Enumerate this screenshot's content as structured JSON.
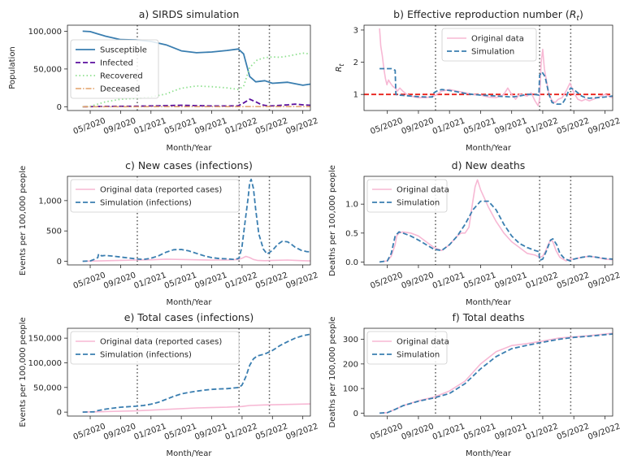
{
  "xlabel": "Month/Year",
  "x_tick_labels": [
    "05/2020",
    "09/2020",
    "01/2021",
    "05/2021",
    "09/2021",
    "01/2022",
    "05/2022",
    "09/2022"
  ],
  "x_tick_months": [
    4,
    8,
    12,
    16,
    20,
    24,
    28,
    32
  ],
  "x_range_months": [
    1,
    33
  ],
  "vertical_markers_months": [
    10.2,
    23.6,
    27.6
  ],
  "colors": {
    "susceptible": "#3a7eb0",
    "infected": "#5a0f9e",
    "recovered": "#8fe08f",
    "deceased": "#e3a068",
    "original": "#f7b8d4",
    "simulation": "#3a7eb0",
    "reference_line": "#e8201a",
    "marker": "#555555"
  },
  "chart_data": [
    {
      "type": "line",
      "title": "a) SIRDS simulation",
      "ylabel": "Population",
      "ylim": [
        -5000,
        108000
      ],
      "y_ticks": [
        0,
        50000,
        100000
      ],
      "y_tick_labels": [
        "0",
        "50,000",
        "100,000"
      ],
      "legend": "top-left",
      "series": [
        {
          "name": "Susceptible",
          "key": "susceptible",
          "style": "solid",
          "x": [
            3,
            4,
            5,
            6,
            8,
            10,
            12,
            14,
            16,
            18,
            20,
            22,
            23.5,
            24.2,
            25,
            25.8,
            27,
            28,
            30,
            32,
            33
          ],
          "y": [
            100000,
            99500,
            96500,
            93500,
            89000,
            88500,
            86500,
            82000,
            74000,
            71500,
            72500,
            74500,
            76500,
            70000,
            40000,
            33000,
            34500,
            31000,
            32500,
            28500,
            30000
          ]
        },
        {
          "name": "Infected",
          "key": "infected",
          "style": "dashed",
          "x": [
            3,
            6,
            10,
            14,
            16,
            18,
            20,
            22,
            23.5,
            24.2,
            25,
            25.8,
            26.6,
            27.5,
            28.5,
            30,
            31,
            32,
            33
          ],
          "y": [
            0,
            500,
            700,
            1500,
            2000,
            1500,
            1000,
            1000,
            1200,
            5000,
            10000,
            6500,
            2500,
            1000,
            1500,
            2500,
            3500,
            2500,
            2000
          ]
        },
        {
          "name": "Recovered",
          "key": "recovered",
          "style": "dotted",
          "x": [
            3,
            4,
            5,
            6,
            8,
            10,
            12,
            14,
            15,
            16,
            17,
            18,
            20,
            22,
            23.5,
            24.2,
            25,
            26,
            27,
            28,
            29,
            30,
            31,
            32,
            33
          ],
          "y": [
            0,
            500,
            3500,
            6500,
            10000,
            11000,
            13000,
            17000,
            21000,
            24500,
            26000,
            27500,
            26500,
            25000,
            23000,
            27000,
            52000,
            62000,
            65000,
            66000,
            65500,
            67000,
            69000,
            71000,
            70000
          ]
        },
        {
          "name": "Deceased",
          "key": "deceased",
          "style": "dashdot",
          "x": [
            3,
            33
          ],
          "y": [
            0,
            300
          ]
        }
      ]
    },
    {
      "type": "line",
      "title": "b) Effective reproduction number (",
      "title_symbol": "R",
      "title_subscript": "t",
      "title_suffix": ")",
      "ylabel": "R",
      "ylabel_subscript": "t",
      "ylim": [
        0.5,
        3.15
      ],
      "y_ticks": [
        1,
        2,
        3
      ],
      "y_tick_labels": [
        "1",
        "2",
        "3"
      ],
      "reference_y": 1.0,
      "legend": "top-center",
      "series": [
        {
          "name": "Original data",
          "key": "original",
          "style": "solid",
          "x": [
            3,
            3.15,
            3.35,
            3.55,
            3.75,
            3.95,
            4.15,
            4.4,
            4.7,
            5,
            5.3,
            5.6,
            6,
            6.5,
            7,
            8,
            9,
            10,
            11,
            12,
            13,
            14,
            15,
            16,
            17,
            18,
            19,
            19.5,
            20,
            20.5,
            21,
            22,
            22.5,
            23,
            23.4,
            23.6,
            23.8,
            24,
            24.2,
            24.5,
            24.8,
            25.2,
            25.6,
            26,
            26.5,
            27,
            27.5,
            28,
            28.5,
            29,
            29.5,
            30,
            31,
            32,
            33
          ],
          "y": [
            3.05,
            2.5,
            2.2,
            1.8,
            1.5,
            1.3,
            1.45,
            1.35,
            1.25,
            1.2,
            1.1,
            1.2,
            1.1,
            1.0,
            0.95,
            0.9,
            0.9,
            0.95,
            1.1,
            1.15,
            1.1,
            1.05,
            1.0,
            0.98,
            0.92,
            0.9,
            1.0,
            1.2,
            1.0,
            0.85,
            1.0,
            0.95,
            1.05,
            0.8,
            0.65,
            0.85,
            2.0,
            2.4,
            1.8,
            1.4,
            1.0,
            0.8,
            0.75,
            0.85,
            0.9,
            1.1,
            1.35,
            1.05,
            0.85,
            0.8,
            0.85,
            0.8,
            0.9,
            1.0,
            0.9
          ]
        },
        {
          "name": "Simulation",
          "key": "simulation",
          "style": "dashed",
          "x": [
            3,
            4.5,
            5,
            5.1,
            5.5,
            6,
            7,
            8,
            9,
            9.8,
            10,
            10.5,
            11,
            12,
            13,
            14,
            15,
            16,
            18,
            20,
            21,
            22,
            23,
            23.5,
            23.6,
            23.9,
            24.3,
            24.8,
            25.2,
            25.8,
            26.5,
            27,
            27.3,
            27.6,
            28,
            28.5,
            29,
            29.5,
            30,
            31,
            32,
            33
          ],
          "y": [
            1.8,
            1.8,
            1.75,
            1.0,
            0.98,
            0.97,
            0.95,
            0.93,
            0.92,
            0.92,
            1.05,
            1.12,
            1.15,
            1.12,
            1.08,
            1.03,
            1.0,
            0.98,
            0.95,
            0.92,
            0.95,
            1.0,
            1.0,
            0.98,
            1.6,
            1.7,
            1.55,
            1.0,
            0.75,
            0.7,
            0.7,
            0.9,
            1.1,
            1.2,
            1.15,
            1.05,
            0.95,
            0.9,
            0.88,
            0.9,
            0.92,
            0.95
          ]
        }
      ]
    },
    {
      "type": "line",
      "title": "c) New cases (infections)",
      "ylabel": "Events per 100,000 people",
      "ylim": [
        -60,
        1400
      ],
      "y_ticks": [
        0,
        500,
        1000
      ],
      "y_tick_labels": [
        "0",
        "500",
        "1,000"
      ],
      "legend": "top-left",
      "series": [
        {
          "name": "Original data (reported cases)",
          "key": "original",
          "style": "solid",
          "x": [
            3,
            5,
            8,
            10,
            12,
            14,
            16,
            18,
            20,
            22,
            23.5,
            24,
            24.5,
            25,
            25.5,
            26,
            27,
            28,
            30,
            31,
            32,
            33
          ],
          "y": [
            0,
            5,
            15,
            20,
            25,
            35,
            30,
            25,
            20,
            20,
            30,
            50,
            80,
            60,
            30,
            15,
            10,
            15,
            20,
            15,
            10,
            5
          ]
        },
        {
          "name": "Simulation (infections)",
          "key": "simulation",
          "style": "dashed",
          "x": [
            3,
            4,
            4.5,
            5,
            5.1,
            5.5,
            6,
            7,
            8,
            9,
            10,
            11,
            12,
            13,
            14,
            15,
            16,
            17,
            18,
            19,
            20,
            21,
            22,
            23,
            23.6,
            24,
            24.4,
            24.8,
            25,
            25.2,
            25.5,
            25.8,
            26.2,
            26.8,
            27.3,
            28,
            28.7,
            29.3,
            30,
            30.5,
            31,
            31.8,
            32.5,
            33
          ],
          "y": [
            0,
            5,
            30,
            60,
            120,
            90,
            95,
            85,
            70,
            55,
            40,
            30,
            50,
            90,
            150,
            190,
            195,
            170,
            130,
            90,
            60,
            45,
            40,
            30,
            50,
            250,
            650,
            1050,
            1300,
            1350,
            1200,
            850,
            450,
            200,
            120,
            180,
            280,
            330,
            320,
            280,
            230,
            180,
            160,
            155
          ]
        }
      ]
    },
    {
      "type": "line",
      "title": "d) New deaths",
      "ylabel": "Deaths per 100,000 people",
      "ylim": [
        -0.05,
        1.48
      ],
      "y_ticks": [
        0,
        0.5,
        1.0
      ],
      "y_tick_labels": [
        "0.0",
        "0.5",
        "1.0"
      ],
      "legend": "top-left",
      "series": [
        {
          "name": "Original data",
          "key": "original",
          "style": "solid",
          "x": [
            3,
            4,
            4.5,
            5,
            5.2,
            5.5,
            6,
            7,
            8,
            9,
            10,
            11,
            12,
            13,
            13.5,
            14,
            14.5,
            15,
            15.3,
            15.6,
            16,
            16.5,
            17,
            18,
            19,
            20,
            21,
            22,
            23,
            23.6,
            24,
            24.4,
            24.7,
            25,
            25.3,
            25.7,
            26.2,
            27,
            27.6,
            28,
            29,
            30,
            31,
            32,
            33
          ],
          "y": [
            0,
            0.02,
            0.1,
            0.3,
            0.45,
            0.5,
            0.52,
            0.5,
            0.45,
            0.35,
            0.25,
            0.2,
            0.3,
            0.45,
            0.5,
            0.5,
            0.6,
            1.05,
            1.3,
            1.42,
            1.25,
            1.1,
            0.95,
            0.7,
            0.5,
            0.35,
            0.25,
            0.15,
            0.12,
            0.08,
            0.1,
            0.2,
            0.3,
            0.38,
            0.35,
            0.2,
            0.08,
            0.02,
            0.05,
            0.05,
            0.08,
            0.1,
            0.08,
            0.05,
            0.04
          ]
        },
        {
          "name": "Simulation",
          "key": "simulation",
          "style": "dashed",
          "x": [
            3,
            4,
            4.5,
            5,
            5.5,
            6,
            7,
            8,
            9,
            10,
            11,
            12,
            13,
            14,
            15,
            16,
            17,
            18,
            19,
            20,
            21,
            22,
            23,
            23.5,
            23.6,
            24,
            24.5,
            25,
            25.3,
            25.8,
            26.2,
            26.8,
            27.5,
            28,
            29,
            30,
            31,
            32,
            33
          ],
          "y": [
            0,
            0.02,
            0.15,
            0.45,
            0.52,
            0.5,
            0.45,
            0.38,
            0.3,
            0.22,
            0.2,
            0.3,
            0.45,
            0.65,
            0.9,
            1.05,
            1.05,
            0.9,
            0.65,
            0.45,
            0.32,
            0.25,
            0.2,
            0.18,
            0.03,
            0.05,
            0.2,
            0.38,
            0.4,
            0.3,
            0.15,
            0.06,
            0.02,
            0.05,
            0.08,
            0.1,
            0.08,
            0.06,
            0.05
          ]
        }
      ]
    },
    {
      "type": "line",
      "title": "e) Total cases (infections)",
      "ylabel": "Events per 100,000 people",
      "ylim": [
        -8000,
        170000
      ],
      "y_ticks": [
        0,
        50000,
        100000,
        150000
      ],
      "y_tick_labels": [
        "0",
        "50,000",
        "100,000",
        "150,000"
      ],
      "legend": "top-left",
      "series": [
        {
          "name": "Original data (reported cases)",
          "key": "original",
          "style": "solid",
          "x": [
            3,
            6,
            10,
            14,
            18,
            22,
            24,
            25,
            27,
            30,
            33
          ],
          "y": [
            0,
            1000,
            2500,
            5500,
            8500,
            10000,
            11500,
            13500,
            14500,
            15500,
            16500
          ]
        },
        {
          "name": "Simulation (infections)",
          "key": "simulation",
          "style": "dashed",
          "x": [
            3,
            4.5,
            5,
            6,
            8,
            10,
            11,
            12,
            13,
            14,
            15,
            16,
            17,
            18,
            19,
            20,
            21,
            22,
            23,
            23.6,
            24,
            24.5,
            25,
            25.5,
            26,
            27,
            28,
            29,
            30,
            31,
            32,
            33
          ],
          "y": [
            0,
            500,
            3000,
            6000,
            10000,
            12000,
            13500,
            16000,
            20000,
            26000,
            32000,
            37000,
            40000,
            42500,
            44500,
            46000,
            47000,
            47500,
            49000,
            50000,
            55000,
            72000,
            95000,
            108000,
            114000,
            118000,
            125000,
            135000,
            143000,
            150000,
            155000,
            158000
          ]
        }
      ]
    },
    {
      "type": "line",
      "title": "f) Total deaths",
      "ylabel": "Deaths per 100,000 people",
      "ylim": [
        -12,
        345
      ],
      "y_ticks": [
        0,
        100,
        200,
        300
      ],
      "y_tick_labels": [
        "0",
        "100",
        "200",
        "300"
      ],
      "legend": "top-left",
      "series": [
        {
          "name": "Original data",
          "key": "original",
          "style": "solid",
          "x": [
            3,
            4,
            5,
            6,
            8,
            10,
            12,
            14,
            16,
            18,
            20,
            22,
            24,
            26,
            28,
            30,
            33
          ],
          "y": [
            0,
            2,
            15,
            30,
            50,
            65,
            90,
            130,
            200,
            250,
            275,
            283,
            293,
            305,
            310,
            315,
            325
          ]
        },
        {
          "name": "Simulation",
          "key": "simulation",
          "style": "dashed",
          "x": [
            3,
            4,
            5,
            6,
            8,
            10,
            12,
            14,
            16,
            18,
            20,
            22,
            24,
            26,
            28,
            30,
            33
          ],
          "y": [
            0,
            2,
            15,
            30,
            48,
            62,
            80,
            120,
            180,
            230,
            262,
            276,
            288,
            300,
            308,
            313,
            322
          ]
        }
      ]
    }
  ]
}
